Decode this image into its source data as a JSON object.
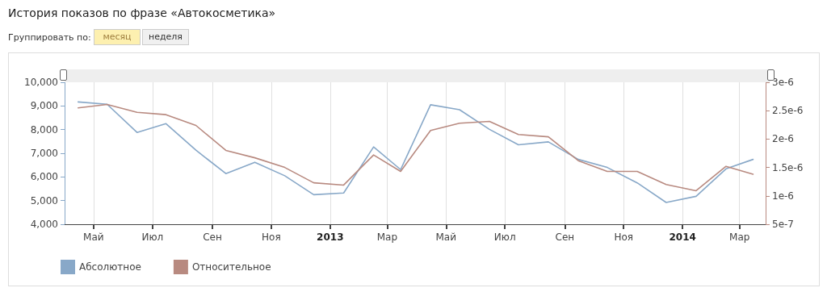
{
  "chart_data": {
    "type": "line",
    "title": "История показов по фразе «Автокосметика»",
    "annotations": [
      "Группировать по:",
      "месяц",
      "неделя"
    ],
    "x": [
      "2012-04-15",
      "2012-05-15",
      "2012-06-15",
      "2012-07-15",
      "2012-08-15",
      "2012-09-15",
      "2012-10-15",
      "2012-11-15",
      "2012-12-15",
      "2013-01-15",
      "2013-02-15",
      "2013-03-15",
      "2013-04-15",
      "2013-05-15",
      "2013-06-15",
      "2013-07-15",
      "2013-08-15",
      "2013-09-15",
      "2013-10-15",
      "2013-11-15",
      "2013-12-15",
      "2014-01-15",
      "2014-02-15",
      "2014-03-15"
    ],
    "series": [
      {
        "name": "Абсолютное",
        "color": "#88a8c8",
        "values": [
          9170,
          9070,
          7880,
          8250,
          7130,
          6140,
          6620,
          6050,
          5250,
          5320,
          7270,
          6310,
          9050,
          8840,
          8010,
          7360,
          7480,
          6740,
          6400,
          5750,
          4920,
          5180,
          6340,
          6740
        ]
      },
      {
        "name": "Относительное",
        "color": "#b88a80",
        "axis": "y2",
        "values": [
          2.55e-06,
          2.61e-06,
          2.47e-06,
          2.43e-06,
          2.24e-06,
          1.8e-06,
          1.67e-06,
          1.5e-06,
          1.23e-06,
          1.19e-06,
          1.72e-06,
          1.43e-06,
          2.15e-06,
          2.28e-06,
          2.31e-06,
          2.08e-06,
          2.04e-06,
          1.62e-06,
          1.43e-06,
          1.43e-06,
          1.2e-06,
          1.09e-06,
          1.52e-06,
          1.38e-06
        ]
      }
    ],
    "xlim": [
      "2012-04-01",
      "2014-03-28"
    ],
    "xticks": [
      {
        "value": "2012-05",
        "label": "Май"
      },
      {
        "value": "2012-07",
        "label": "Июл"
      },
      {
        "value": "2012-09",
        "label": "Сен"
      },
      {
        "value": "2012-11",
        "label": "Ноя"
      },
      {
        "value": "2013-01",
        "label": "2013"
      },
      {
        "value": "2013-03",
        "label": "Мар"
      },
      {
        "value": "2013-05",
        "label": "Май"
      },
      {
        "value": "2013-07",
        "label": "Июл"
      },
      {
        "value": "2013-09",
        "label": "Сен"
      },
      {
        "value": "2013-11",
        "label": "Ноя"
      },
      {
        "value": "2014-01",
        "label": "2014"
      },
      {
        "value": "2014-03",
        "label": "Мар"
      }
    ],
    "ylim": [
      4000,
      10000
    ],
    "yticks": [
      {
        "value": 4000,
        "label": "4,000"
      },
      {
        "value": 5000,
        "label": "5,000"
      },
      {
        "value": 6000,
        "label": "6,000"
      },
      {
        "value": 7000,
        "label": "7,000"
      },
      {
        "value": 8000,
        "label": "8,000"
      },
      {
        "value": 9000,
        "label": "9,000"
      },
      {
        "value": 10000,
        "label": "10,000"
      }
    ],
    "y2lim": [
      5e-07,
      3e-06
    ],
    "y2ticks": [
      {
        "value": 5e-07,
        "label": "5e-7"
      },
      {
        "value": 1e-06,
        "label": "1e-6"
      },
      {
        "value": 1.5e-06,
        "label": "1.5e-6"
      },
      {
        "value": 2e-06,
        "label": "2e-6"
      },
      {
        "value": 2.5e-06,
        "label": "2.5e-6"
      },
      {
        "value": 3e-06,
        "label": "3e-6"
      }
    ],
    "grid": "x",
    "legend": "bottom left",
    "marker": "none",
    "line_style": "solid"
  }
}
